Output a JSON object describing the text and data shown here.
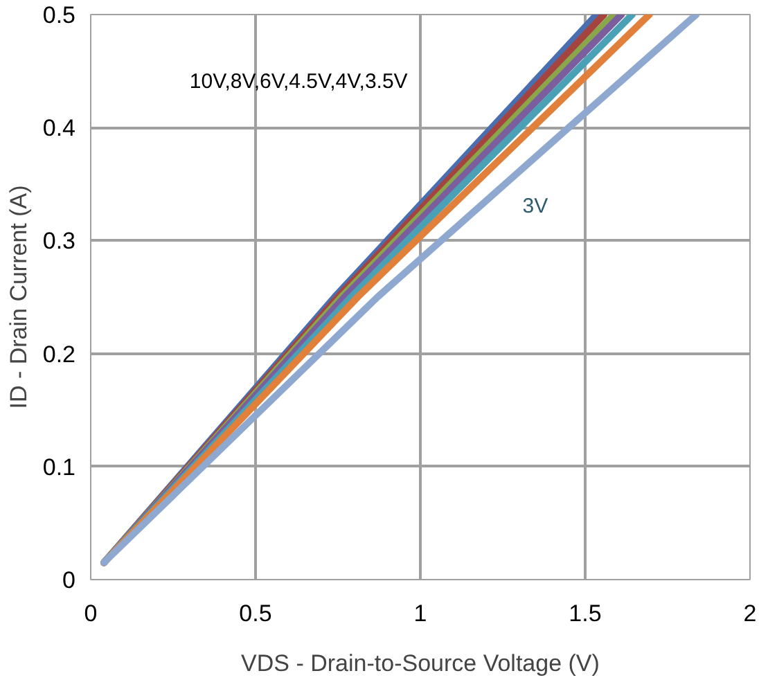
{
  "chart_data": {
    "type": "line",
    "xlabel": "VDS - Drain-to-Source Voltage (V)",
    "ylabel": "ID - Drain Current (A)",
    "xlim": [
      0,
      2
    ],
    "ylim": [
      0,
      0.5
    ],
    "xticks": [
      0,
      0.5,
      1,
      1.5,
      2
    ],
    "yticks": [
      0,
      0.1,
      0.2,
      0.3,
      0.4,
      0.5
    ],
    "grid": true,
    "line_style": "solid",
    "marker": "none",
    "series": [
      {
        "color": "#4a6fb0",
        "x": [
          0.04,
          0.74,
          1.535
        ],
        "values": [
          0.015,
          0.25,
          0.5
        ]
      },
      {
        "color": "#a5443f",
        "x": [
          0.04,
          0.75,
          1.557
        ],
        "values": [
          0.015,
          0.25,
          0.5
        ]
      },
      {
        "color": "#8aa64b",
        "x": [
          0.04,
          0.76,
          1.587
        ],
        "values": [
          0.015,
          0.25,
          0.5
        ]
      },
      {
        "color": "#7a5e9e",
        "x": [
          0.04,
          0.77,
          1.61
        ],
        "values": [
          0.015,
          0.25,
          0.5
        ]
      },
      {
        "color": "#4aa0b5",
        "x": [
          0.04,
          0.79,
          1.643
        ],
        "values": [
          0.015,
          0.25,
          0.5
        ]
      },
      {
        "color": "#e0803a",
        "x": [
          0.04,
          0.81,
          1.695
        ],
        "values": [
          0.015,
          0.25,
          0.5
        ]
      },
      {
        "color": "#8ea8d0",
        "x": [
          0.04,
          0.87,
          1.837
        ],
        "values": [
          0.015,
          0.25,
          0.5
        ]
      }
    ],
    "annotations": [
      "10V,8V,6V,4.5V,4V,3.5V",
      "3V"
    ]
  }
}
